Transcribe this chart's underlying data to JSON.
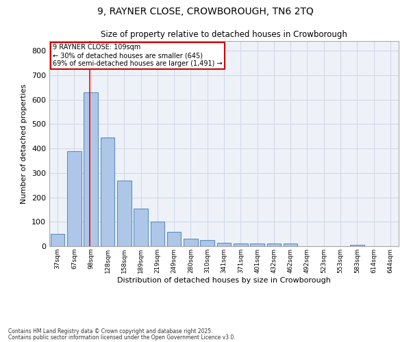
{
  "title_line1": "9, RAYNER CLOSE, CROWBOROUGH, TN6 2TQ",
  "title_line2": "Size of property relative to detached houses in Crowborough",
  "xlabel": "Distribution of detached houses by size in Crowborough",
  "ylabel": "Number of detached properties",
  "categories": [
    "37sqm",
    "67sqm",
    "98sqm",
    "128sqm",
    "158sqm",
    "189sqm",
    "219sqm",
    "249sqm",
    "280sqm",
    "310sqm",
    "341sqm",
    "371sqm",
    "401sqm",
    "432sqm",
    "462sqm",
    "492sqm",
    "523sqm",
    "553sqm",
    "583sqm",
    "614sqm",
    "644sqm"
  ],
  "values": [
    50,
    390,
    630,
    445,
    270,
    155,
    100,
    60,
    30,
    25,
    13,
    10,
    10,
    10,
    12,
    0,
    0,
    0,
    7,
    0,
    0
  ],
  "bar_color": "#aec6e8",
  "bar_edgecolor": "#5a8fc2",
  "redline_index": 2,
  "annotation_title": "9 RAYNER CLOSE: 109sqm",
  "annotation_line2": "← 30% of detached houses are smaller (645)",
  "annotation_line3": "69% of semi-detached houses are larger (1,491) →",
  "annotation_box_color": "#ffffff",
  "annotation_box_edgecolor": "#cc0000",
  "grid_color": "#d0d8e8",
  "background_color": "#eef2f8",
  "ylim": [
    0,
    840
  ],
  "yticks": [
    0,
    100,
    200,
    300,
    400,
    500,
    600,
    700,
    800
  ],
  "footer_line1": "Contains HM Land Registry data © Crown copyright and database right 2025.",
  "footer_line2": "Contains public sector information licensed under the Open Government Licence v3.0."
}
